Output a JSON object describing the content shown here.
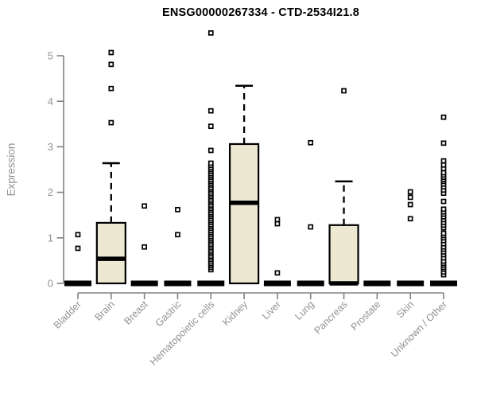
{
  "page": {
    "background": "#ffffff"
  },
  "chart_data": {
    "type": "box",
    "title": "ENSG00000267334 - CTD-2534I21.8",
    "ylabel": "Expression",
    "xlabel": "",
    "ylim": [
      0,
      5.6
    ],
    "yticks": [
      0,
      1,
      2,
      3,
      4,
      5
    ],
    "grid": false,
    "legend": null,
    "colors": {
      "box_fill": "#EDE8D1",
      "box_stroke": "#000000",
      "median": "#000000",
      "outlier_stroke": "#000000",
      "outlier_fill": "#ffffff",
      "axis": "#828282",
      "label": "#929292",
      "title": "#000000"
    },
    "categories": [
      "Bladder",
      "Brain",
      "Breast",
      "Gastric",
      "Hematopoietic cells",
      "Kidney",
      "Liver",
      "Lung",
      "Pancreas",
      "Prostate",
      "Skin",
      "Unknown / Other"
    ],
    "series": [
      {
        "name": "Bladder",
        "q1": 0,
        "median": 0,
        "q3": 0,
        "whislo": 0,
        "whishi": 0,
        "outliers": [
          0.77,
          1.07
        ]
      },
      {
        "name": "Brain",
        "q1": 0,
        "median": 0.54,
        "q3": 1.33,
        "whislo": 0,
        "whishi": 2.64,
        "outliers": [
          3.53,
          4.28,
          4.81,
          5.07
        ]
      },
      {
        "name": "Breast",
        "q1": 0,
        "median": 0,
        "q3": 0,
        "whislo": 0,
        "whishi": 0,
        "outliers": [
          0.8,
          1.7
        ]
      },
      {
        "name": "Gastric",
        "q1": 0,
        "median": 0,
        "q3": 0,
        "whislo": 0,
        "whishi": 0,
        "outliers": [
          1.07,
          1.62
        ]
      },
      {
        "name": "Hematopoietic cells",
        "q1": 0,
        "median": 0,
        "q3": 0,
        "whislo": 0,
        "whishi": 0,
        "outliers": [
          0.3,
          0.35,
          0.39,
          0.43,
          0.47,
          0.52,
          0.56,
          0.6,
          0.65,
          0.69,
          0.73,
          0.78,
          0.82,
          0.86,
          0.91,
          0.95,
          0.99,
          1.03,
          1.08,
          1.12,
          1.16,
          1.21,
          1.25,
          1.29,
          1.34,
          1.38,
          1.42,
          1.47,
          1.51,
          1.55,
          1.6,
          1.64,
          1.68,
          1.72,
          1.77,
          1.81,
          1.85,
          1.9,
          1.94,
          1.98,
          2.03,
          2.07,
          2.11,
          2.16,
          2.2,
          2.24,
          2.28,
          2.33,
          2.37,
          2.41,
          2.46,
          2.5,
          2.54,
          2.59,
          2.64,
          2.92,
          3.45,
          3.79,
          5.5
        ]
      },
      {
        "name": "Kidney",
        "q1": 0,
        "median": 1.77,
        "q3": 3.06,
        "whislo": 0,
        "whishi": 4.34,
        "outliers": []
      },
      {
        "name": "Liver",
        "q1": 0,
        "median": 0,
        "q3": 0,
        "whislo": 0,
        "whishi": 0,
        "outliers": [
          0.23,
          1.31,
          1.4
        ]
      },
      {
        "name": "Lung",
        "q1": 0,
        "median": 0,
        "q3": 0,
        "whislo": 0,
        "whishi": 0,
        "outliers": [
          1.24,
          3.09
        ]
      },
      {
        "name": "Pancreas",
        "q1": 0,
        "median": 0,
        "q3": 1.28,
        "whislo": 0,
        "whishi": 2.24,
        "outliers": [
          4.23
        ]
      },
      {
        "name": "Prostate",
        "q1": 0,
        "median": 0,
        "q3": 0,
        "whislo": 0,
        "whishi": 0,
        "outliers": []
      },
      {
        "name": "Skin",
        "q1": 0,
        "median": 0,
        "q3": 0,
        "whislo": 0,
        "whishi": 0,
        "outliers": [
          1.42,
          1.73,
          1.89,
          2.01
        ]
      },
      {
        "name": "Unknown / Other",
        "q1": 0,
        "median": 0,
        "q3": 0,
        "whislo": 0,
        "whishi": 0,
        "outliers": [
          0.19,
          0.25,
          0.31,
          0.35,
          0.4,
          0.44,
          0.49,
          0.56,
          0.63,
          0.69,
          0.75,
          0.8,
          0.87,
          0.94,
          1.0,
          1.05,
          1.1,
          1.22,
          1.28,
          1.34,
          1.4,
          1.46,
          1.52,
          1.57,
          1.63,
          1.8,
          1.98,
          2.05,
          2.12,
          2.18,
          2.24,
          2.28,
          2.33,
          2.38,
          2.43,
          2.52,
          2.6,
          2.69,
          3.08,
          3.65
        ]
      }
    ]
  }
}
